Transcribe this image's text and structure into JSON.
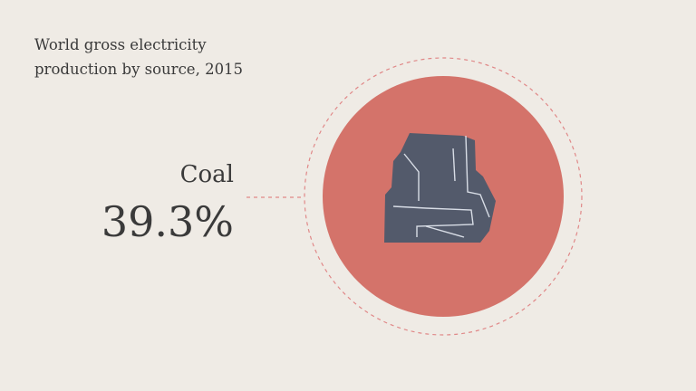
{
  "chart_data": {
    "type": "stat",
    "title": "World gross electricity production by source, 2015",
    "categories": [
      "Coal"
    ],
    "values": [
      39.3
    ],
    "value_labels": [
      "39.3%"
    ],
    "color": "#d4736a"
  }
}
